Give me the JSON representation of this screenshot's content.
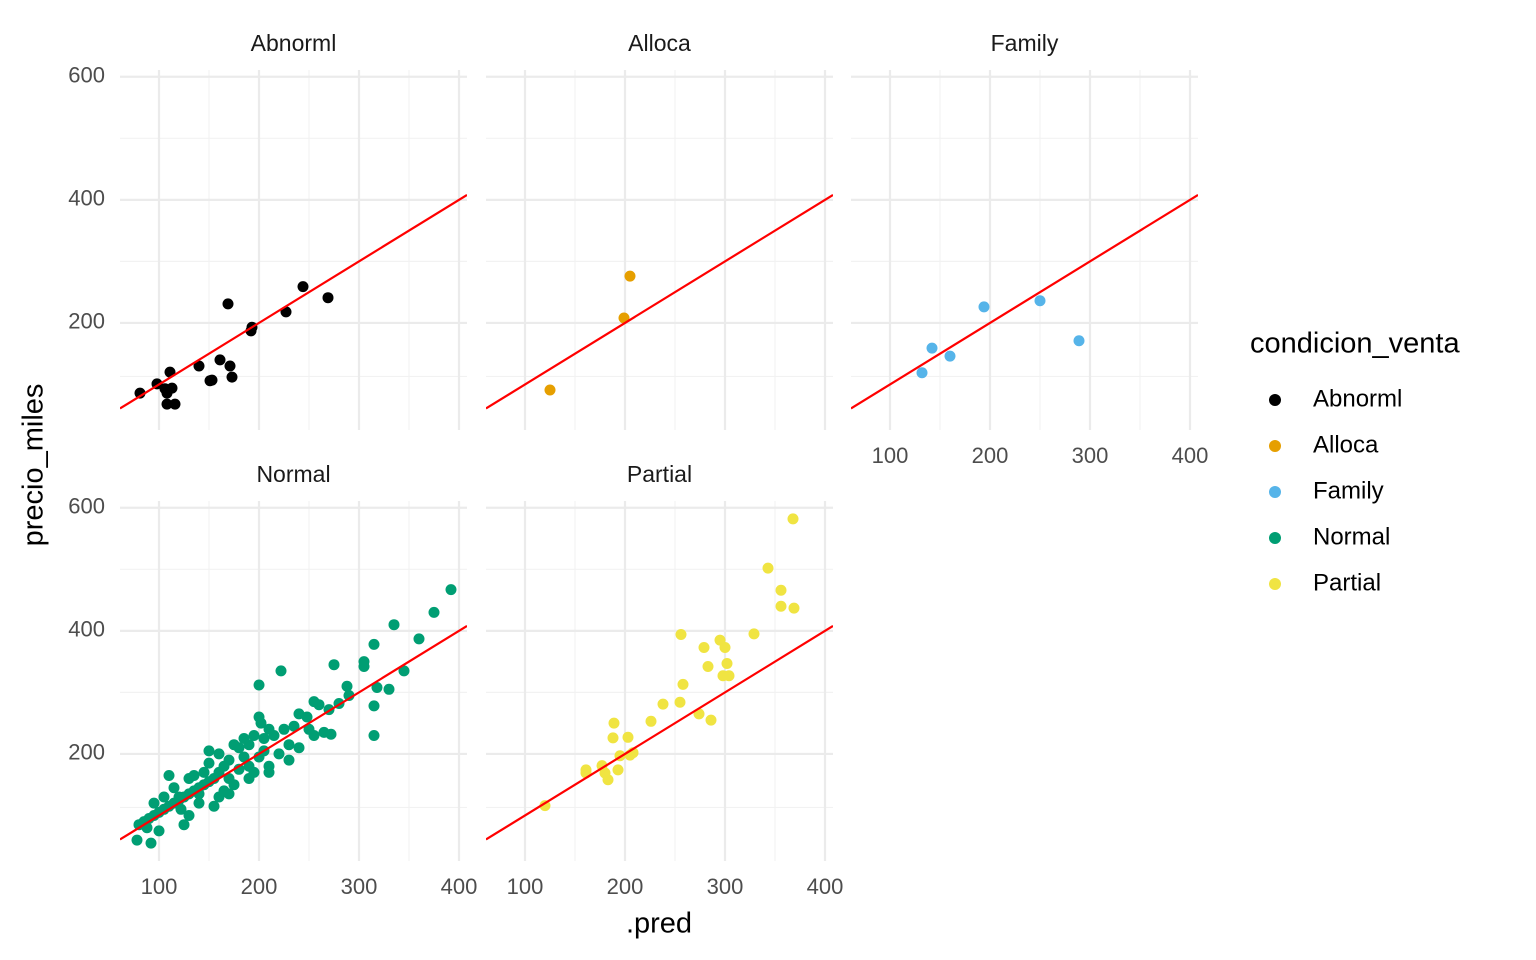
{
  "chart_data": {
    "type": "scatter",
    "xlabel": ".pred",
    "ylabel": "precio_miles",
    "legend_title": "condicion_venta",
    "xlim": [
      61,
      408
    ],
    "ylim": [
      26,
      611
    ],
    "xticks": [
      100,
      200,
      300,
      400
    ],
    "yticks": [
      200,
      400,
      600
    ],
    "grid": true,
    "legend_position": "right",
    "abline": {
      "slope": 1,
      "intercept": 0,
      "color": "#ff0000"
    },
    "facets": [
      {
        "name": "Abnorml",
        "color": "#000000",
        "x": [
          81,
          98,
          106,
          108,
          111,
          113,
          108,
          116,
          140,
          153,
          151,
          161,
          169,
          171,
          173,
          192,
          193,
          227,
          244,
          269
        ],
        "y": [
          86,
          101,
          93,
          86,
          120,
          94,
          68,
          68,
          130,
          107,
          106,
          140,
          231,
          130,
          112,
          187,
          193,
          218,
          259,
          241
        ]
      },
      {
        "name": "Alloca",
        "color": "#E69F00",
        "x": [
          125,
          199,
          205
        ],
        "y": [
          91,
          208,
          276
        ]
      },
      {
        "name": "Family",
        "color": "#56B4E9",
        "x": [
          132,
          142,
          160,
          194,
          250,
          289
        ],
        "y": [
          119,
          159,
          146,
          226,
          236,
          171
        ]
      },
      {
        "name": "Normal",
        "color": "#009E73",
        "x": [
          392,
          375,
          360,
          335,
          315,
          305,
          305,
          345,
          318,
          330,
          315,
          315,
          288,
          275,
          222,
          200,
          290,
          280,
          270,
          260,
          255,
          248,
          240,
          265,
          250,
          235,
          225,
          215,
          200,
          202,
          205,
          190,
          180,
          185,
          170,
          165,
          160,
          155,
          150,
          145,
          140,
          135,
          130,
          125,
          120,
          115,
          110,
          105,
          100,
          95,
          90,
          85,
          80,
          78,
          92,
          100,
          110,
          120,
          125,
          130,
          140,
          150,
          155,
          160,
          165,
          170,
          175,
          180,
          190,
          195,
          200,
          205,
          210,
          220,
          230,
          240,
          175,
          160,
          145,
          135,
          115,
          105,
          95,
          88,
          150,
          185,
          195,
          210,
          255,
          272,
          210,
          170,
          130,
          122,
          140,
          190,
          230
        ],
        "y": [
          467,
          430,
          387,
          410,
          378,
          350,
          342,
          335,
          308,
          305,
          278,
          230,
          310,
          345,
          335,
          312,
          295,
          282,
          272,
          280,
          285,
          260,
          265,
          235,
          240,
          245,
          240,
          230,
          260,
          250,
          225,
          215,
          210,
          195,
          190,
          180,
          170,
          160,
          155,
          150,
          145,
          140,
          135,
          130,
          125,
          120,
          115,
          110,
          105,
          100,
          95,
          90,
          85,
          60,
          55,
          75,
          165,
          130,
          85,
          100,
          120,
          205,
          115,
          130,
          140,
          160,
          150,
          175,
          180,
          170,
          195,
          205,
          180,
          200,
          215,
          210,
          215,
          200,
          170,
          165,
          145,
          130,
          120,
          80,
          185,
          225,
          230,
          240,
          230,
          232,
          170,
          135,
          160,
          110,
          135,
          160,
          190
        ]
      },
      {
        "name": "Partial",
        "color": "#F0E442",
        "x": [
          120,
          161,
          161,
          177,
          180,
          183,
          189,
          188,
          195,
          193,
          203,
          205,
          208,
          226,
          238,
          255,
          258,
          256,
          274,
          279,
          283,
          286,
          295,
          300,
          302,
          298,
          304,
          329,
          343,
          356,
          356,
          369,
          368
        ],
        "y": [
          116,
          174,
          169,
          181,
          169,
          158,
          250,
          226,
          197,
          174,
          227,
          198,
          202,
          253,
          281,
          284,
          313,
          394,
          265,
          373,
          342,
          255,
          385,
          373,
          347,
          327,
          327,
          395,
          502,
          466,
          440,
          437,
          582
        ]
      }
    ]
  }
}
